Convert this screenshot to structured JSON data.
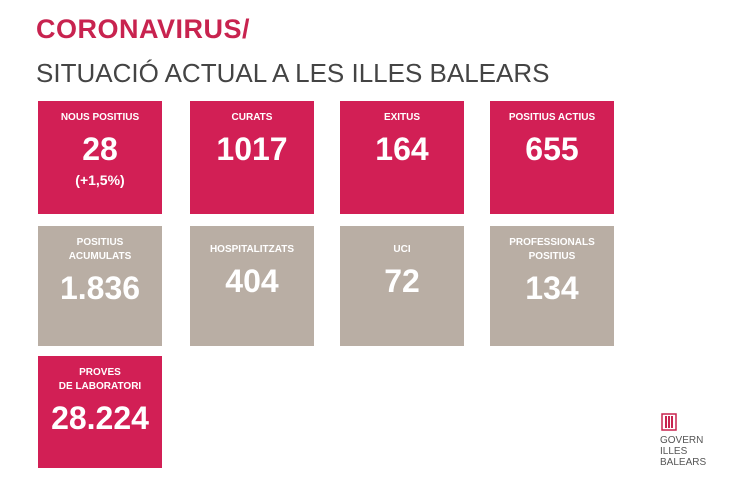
{
  "header": {
    "title": "CORONAVIRUS/",
    "subtitle": "SITUACIÓ ACTUAL A LES ILLES BALEARS"
  },
  "tiles": [
    {
      "label": [
        "NOUS POSITIUS"
      ],
      "value": "28",
      "note": "(+1,5%)",
      "style": "pink"
    },
    {
      "label": [
        "CURATS"
      ],
      "value": "1017",
      "style": "pink"
    },
    {
      "label": [
        "EXITUS"
      ],
      "value": "164",
      "style": "pink"
    },
    {
      "label": [
        "POSITIUS ACTIUS"
      ],
      "value": "655",
      "style": "pink"
    },
    {
      "label": [
        "POSITIUS",
        "ACUMULATS"
      ],
      "value": "1.836",
      "style": "gray"
    },
    {
      "label": [
        "HOSPITALITZATS"
      ],
      "value": "404",
      "style": "gray"
    },
    {
      "label": [
        "UCI"
      ],
      "value": "72",
      "style": "gray"
    },
    {
      "label": [
        "PROFESSIONALS",
        "POSITIUS"
      ],
      "value": "134",
      "style": "gray"
    },
    {
      "label": [
        "PROVES",
        "DE LABORATORI"
      ],
      "value": "28.224",
      "style": "pink"
    }
  ],
  "logo": [
    "GOVERN",
    "ILLES",
    "BALEARS"
  ]
}
